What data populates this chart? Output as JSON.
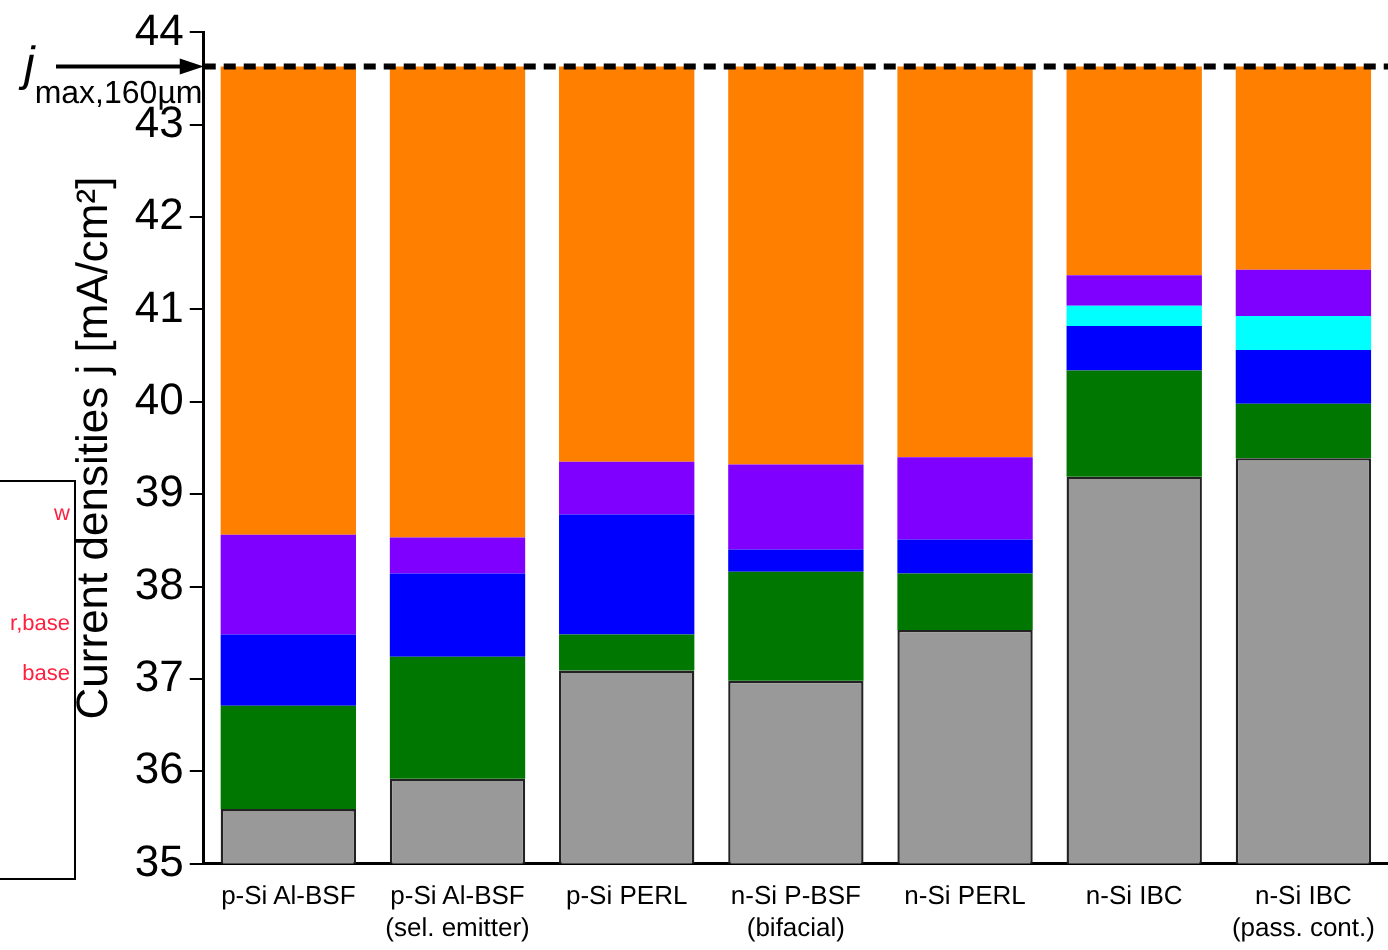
{
  "chart_data": {
    "type": "bar",
    "ylabel": "Current densities j [mA/cm²]",
    "categories": [
      "p-Si Al-BSF",
      "p-Si Al-BSF\n(sel. emitter)",
      "p-Si PERL",
      "n-Si P-BSF\n(bifacial)",
      "n-Si PERL",
      "n-Si IBC",
      "n-Si IBC\n(pass. cont.)"
    ],
    "series": [
      {
        "color": "#999999",
        "values": [
          35.59,
          35.92,
          37.09,
          36.98,
          37.53,
          39.19,
          39.39
        ]
      },
      {
        "color": "#007700",
        "values": [
          1.12,
          1.32,
          0.39,
          1.18,
          0.61,
          1.15,
          0.59
        ],
        "base": [
          35.59,
          35.92,
          37.09,
          36.98,
          37.53,
          39.19,
          39.39
        ]
      },
      {
        "color": "#0000ff",
        "values": [
          0.77,
          0.9,
          1.3,
          0.24,
          0.37,
          0.48,
          0.58
        ],
        "base": [
          36.71,
          37.24,
          37.48,
          38.16,
          38.14,
          40.34,
          39.98
        ]
      },
      {
        "color": "#00ffff",
        "values": [
          null,
          null,
          null,
          null,
          null,
          0.22,
          0.37
        ],
        "base": [
          null,
          null,
          null,
          null,
          null,
          40.82,
          40.56
        ]
      },
      {
        "color": "#7f00ff",
        "values": [
          1.08,
          0.39,
          0.57,
          0.92,
          0.89,
          0.33,
          0.5
        ],
        "base": [
          37.48,
          38.14,
          38.78,
          38.4,
          38.51,
          41.04,
          40.93
        ]
      },
      {
        "color": "#ff8000",
        "values": [
          5.07,
          5.1,
          4.28,
          4.31,
          4.23,
          2.26,
          2.2
        ],
        "base": [
          38.56,
          38.53,
          39.35,
          39.32,
          39.4,
          41.37,
          41.43
        ]
      }
    ],
    "ylim": [
      35,
      44
    ],
    "yticks": [
      35,
      36,
      37,
      38,
      39,
      40,
      41,
      42,
      43,
      44
    ],
    "grid": false,
    "legend": false,
    "ref_lines": [
      {
        "axis": "y",
        "value": 43.63,
        "label": "j$_{max,160µm}$",
        "color": "#000000",
        "line_style": "dashed"
      }
    ],
    "annotations": [
      "w",
      "r,base",
      "base"
    ]
  }
}
